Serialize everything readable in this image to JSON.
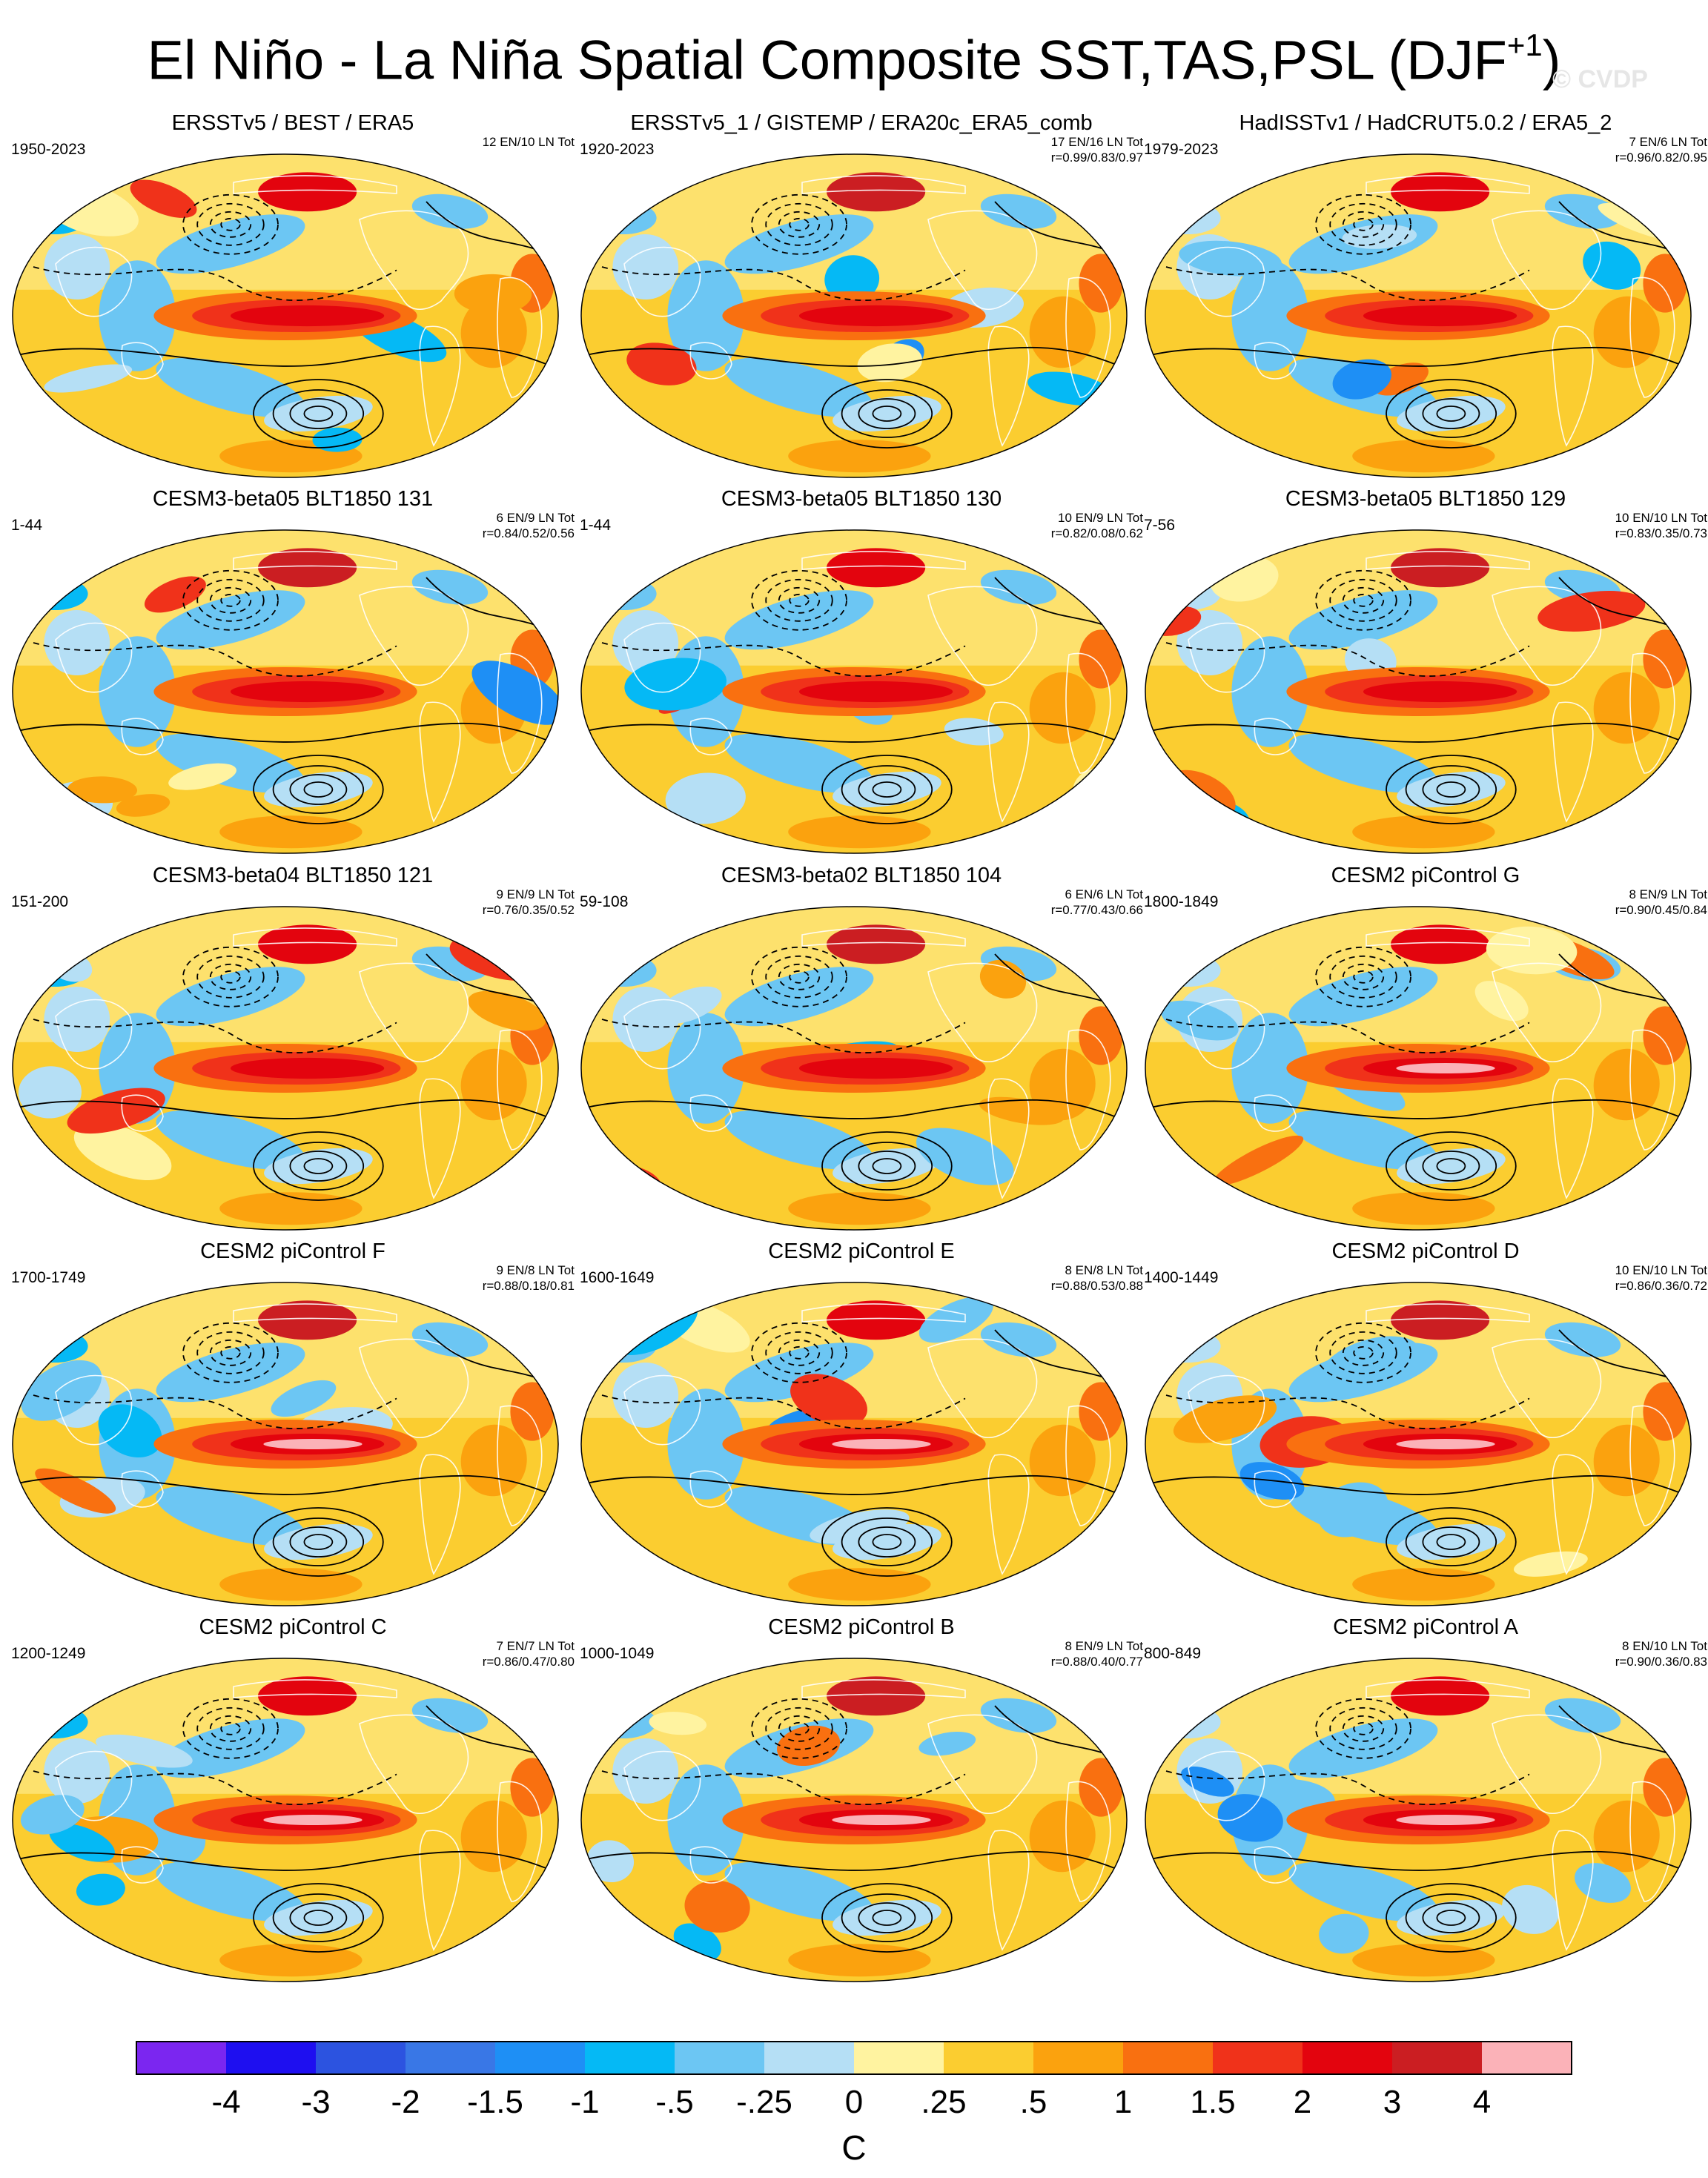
{
  "figure": {
    "title": "El Niño - La Niña Spatial Composite SST,TAS,PSL (DJF",
    "title_superscript": "+1",
    "title_suffix": ")",
    "watermark": "© CVDP"
  },
  "chart_data": {
    "type": "heatmap",
    "description_kind": "global composite maps with filled temperature anomaly shading and black sea-level-pressure contours (solid positive, dashed negative)",
    "panels": [
      {
        "title": "ERSSTv5 / BEST / ERA5",
        "years": "1950-2023",
        "counts": "12 EN/10 LN Tot",
        "stats": ""
      },
      {
        "title": "ERSSTv5_1 / GISTEMP / ERA20c_ERA5_comb",
        "years": "1920-2023",
        "counts": "17 EN/16 LN Tot",
        "stats": "r=0.99/0.83/0.97"
      },
      {
        "title": "HadISSTv1 / HadCRUT5.0.2 / ERA5_2",
        "years": "1979-2023",
        "counts": "7 EN/6 LN Tot",
        "stats": "r=0.96/0.82/0.95"
      },
      {
        "title": "CESM3-beta05 BLT1850 131",
        "years": "1-44",
        "counts": "6 EN/9 LN Tot",
        "stats": "r=0.84/0.52/0.56"
      },
      {
        "title": "CESM3-beta05 BLT1850 130",
        "years": "1-44",
        "counts": "10 EN/9 LN Tot",
        "stats": "r=0.82/0.08/0.62"
      },
      {
        "title": "CESM3-beta05 BLT1850 129",
        "years": "7-56",
        "counts": "10 EN/10 LN Tot",
        "stats": "r=0.83/0.35/0.73"
      },
      {
        "title": "CESM3-beta04 BLT1850 121",
        "years": "151-200",
        "counts": "9 EN/9 LN Tot",
        "stats": "r=0.76/0.35/0.52"
      },
      {
        "title": "CESM3-beta02 BLT1850 104",
        "years": "59-108",
        "counts": "6 EN/6 LN Tot",
        "stats": "r=0.77/0.43/0.66"
      },
      {
        "title": "CESM2 piControl G",
        "years": "1800-1849",
        "counts": "8 EN/9 LN Tot",
        "stats": "r=0.90/0.45/0.84"
      },
      {
        "title": "CESM2 piControl F",
        "years": "1700-1749",
        "counts": "9 EN/8 LN Tot",
        "stats": "r=0.88/0.18/0.81"
      },
      {
        "title": "CESM2 piControl E",
        "years": "1600-1649",
        "counts": "8 EN/8 LN Tot",
        "stats": "r=0.88/0.53/0.88"
      },
      {
        "title": "CESM2 piControl D",
        "years": "1400-1449",
        "counts": "10 EN/10 LN Tot",
        "stats": "r=0.86/0.36/0.72"
      },
      {
        "title": "CESM2 piControl C",
        "years": "1200-1249",
        "counts": "7 EN/7 LN Tot",
        "stats": "r=0.86/0.47/0.80"
      },
      {
        "title": "CESM2 piControl B",
        "years": "1000-1049",
        "counts": "8 EN/9 LN Tot",
        "stats": "r=0.88/0.40/0.77"
      },
      {
        "title": "CESM2 piControl A",
        "years": "800-849",
        "counts": "8 EN/10 LN Tot",
        "stats": "r=0.90/0.36/0.83"
      }
    ],
    "colorbar": {
      "colors": [
        "#7b26f0",
        "#1e0ff0",
        "#2c53e0",
        "#3977e6",
        "#1e8ff5",
        "#05b9f5",
        "#6cc6f3",
        "#b5dff5",
        "#fff3a0",
        "#fbcd30",
        "#fba20e",
        "#f97010",
        "#f0321a",
        "#e3040e",
        "#cb1e22",
        "#fbb2b8"
      ],
      "tick_labels": [
        "-4",
        "-3",
        "-2",
        "-1.5",
        "-1",
        "-.5",
        "-.25",
        "0",
        ".25",
        ".5",
        "1",
        "1.5",
        "2",
        "3",
        "4"
      ],
      "unit": "C"
    }
  }
}
